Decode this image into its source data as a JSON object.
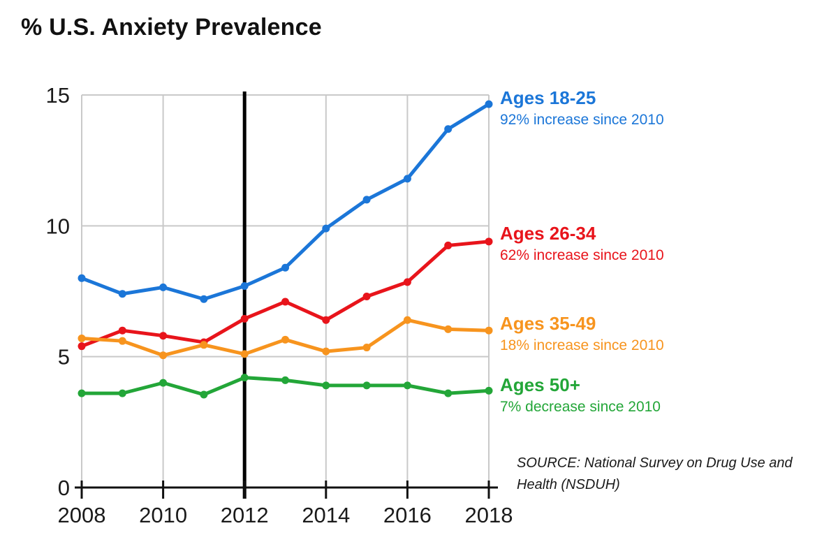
{
  "page": {
    "title": "% U.S. Anxiety Prevalence"
  },
  "source_note": {
    "line1": "SOURCE: National Survey on Drug Use and",
    "line2": "Health (NSDUH)"
  },
  "chart_data": {
    "type": "line",
    "title": "% U.S. Anxiety Prevalence",
    "xlabel": "",
    "ylabel": "",
    "x": [
      2008,
      2009,
      2010,
      2011,
      2012,
      2013,
      2014,
      2015,
      2016,
      2017,
      2018
    ],
    "xlim": [
      2008,
      2018
    ],
    "ylim": [
      0,
      15
    ],
    "x_ticks": [
      2008,
      2010,
      2012,
      2014,
      2016,
      2018
    ],
    "x_tick_labels": [
      "2008",
      "2010",
      "2012",
      "2014",
      "2016",
      "2018"
    ],
    "y_ticks": [
      0,
      5,
      10,
      15
    ],
    "y_tick_labels": [
      "0",
      "5",
      "10",
      "15"
    ],
    "grid": true,
    "reference_line_x": 2012,
    "legend_position": "right",
    "series": [
      {
        "name": "Ages 18-25",
        "annotation": "92% increase since 2010",
        "color": "#1b76d8",
        "values": [
          8.0,
          7.4,
          7.65,
          7.2,
          7.7,
          8.4,
          9.9,
          11.0,
          11.8,
          13.7,
          14.65
        ]
      },
      {
        "name": "Ages 26-34",
        "annotation": "62% increase since 2010",
        "color": "#e8141b",
        "values": [
          5.4,
          6.0,
          5.8,
          5.55,
          6.45,
          7.1,
          6.4,
          7.3,
          7.85,
          9.25,
          9.4
        ]
      },
      {
        "name": "Ages 35-49",
        "annotation": "18% increase since 2010",
        "color": "#f7941e",
        "values": [
          5.7,
          5.6,
          5.05,
          5.45,
          5.1,
          5.65,
          5.2,
          5.35,
          6.4,
          6.05,
          6.0
        ]
      },
      {
        "name": "Ages 50+",
        "annotation": "7% decrease since 2010",
        "color": "#23a638",
        "values": [
          3.6,
          3.6,
          4.0,
          3.55,
          4.2,
          4.1,
          3.9,
          3.9,
          3.9,
          3.6,
          3.7
        ]
      }
    ],
    "colors": {
      "grid": "#c9c9c9",
      "axis": "#111111",
      "tick_text": "#1a1a1a",
      "reference_line": "#000000"
    }
  }
}
